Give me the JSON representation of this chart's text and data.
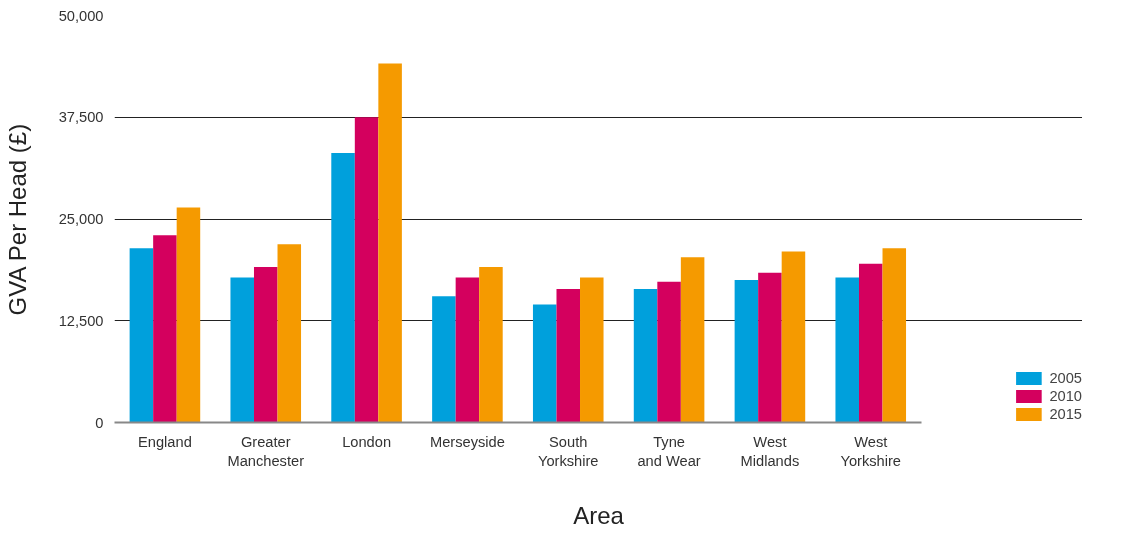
{
  "chart_data": {
    "type": "bar",
    "xlabel": "Area",
    "ylabel": "GVA Per Head (£)",
    "categories": [
      "England",
      "Greater Manchester",
      "London",
      "Merseyside",
      "South Yorkshire",
      "Tyne and Wear",
      "West Midlands",
      "West Yorkshire"
    ],
    "series": [
      {
        "name": "2005",
        "color": "#00a0dc",
        "values": [
          21400,
          17800,
          33100,
          15500,
          14500,
          16400,
          17500,
          17800
        ]
      },
      {
        "name": "2010",
        "color": "#d4005e",
        "values": [
          23000,
          19100,
          37500,
          17800,
          16400,
          17300,
          18400,
          19500
        ]
      },
      {
        "name": "2015",
        "color": "#f59a00",
        "values": [
          26400,
          21900,
          44100,
          19100,
          17800,
          20300,
          21000,
          21400
        ]
      }
    ],
    "ylim": [
      0,
      50000
    ],
    "yticks": [
      0,
      {
        "value": 12500,
        "label": "12,500"
      },
      {
        "value": 25000,
        "label": "25,000"
      },
      {
        "value": 37500,
        "label": "37,500"
      },
      {
        "value": 50000,
        "label": "50,000"
      }
    ],
    "grid": "y",
    "legend": "bottom right"
  }
}
